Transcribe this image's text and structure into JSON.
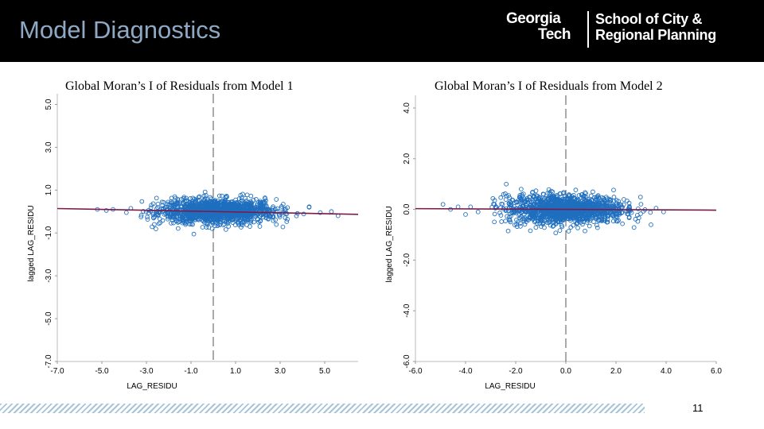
{
  "slide": {
    "title": "Model Diagnostics",
    "logo": {
      "line1": "Georgia",
      "line2": "Tech",
      "school1": "School of City &",
      "school2": "Regional Planning"
    },
    "page_number": "11"
  },
  "colors": {
    "header_bg": "#000000",
    "title_color": "#8fa9c4",
    "point_color": "#1f6fbf",
    "regression_line": "#7a1a4a",
    "stripe": "#a8c4d8"
  },
  "chart_data": [
    {
      "type": "scatter",
      "title": "Global Moran’s I of Residuals from Model 1",
      "xlabel": "LAG_RESIDU",
      "ylabel": "lagged LAG_RESIDU",
      "x_ticks": [
        "-7.0",
        "-5.0",
        "-3.0",
        "-1.0",
        "1.0",
        "3.0",
        "5.0"
      ],
      "y_ticks": [
        "-7.0",
        "-5.0",
        "-3.0",
        "-1.0",
        "1.0",
        "3.0",
        "5.0"
      ],
      "xlim": [
        -7,
        6.5
      ],
      "ylim": [
        -7,
        5.5
      ],
      "x_mean": 0,
      "regression": {
        "intercept": 0.0,
        "slope": -0.02
      },
      "grid": false,
      "cluster": {
        "x_range": [
          -3.3,
          4.5
        ],
        "x_center": 0.2,
        "x_spread": 1.3,
        "y_spread": 0.28
      },
      "outliers": [
        [
          -5.2,
          0.1
        ],
        [
          -4.8,
          0.05
        ],
        [
          -4.5,
          0.1
        ],
        [
          -3.9,
          -0.05
        ],
        [
          -3.7,
          0.15
        ],
        [
          4.8,
          -0.05
        ],
        [
          5.3,
          0.0
        ],
        [
          5.6,
          -0.2
        ],
        [
          4.3,
          0.2
        ]
      ]
    },
    {
      "type": "scatter",
      "title": "Global Moran’s I of Residuals from Model 2",
      "xlabel": "LAG_RESIDU",
      "ylabel": "lagged LAG_RESIDU",
      "x_ticks": [
        "-6.0",
        "-4.0",
        "-2.0",
        "0.0",
        "2.0",
        "4.0",
        "6.0"
      ],
      "y_ticks": [
        "-6.0",
        "-4.0",
        "-2.0",
        "0.0",
        "2.0",
        "4.0"
      ],
      "xlim": [
        -6,
        6
      ],
      "ylim": [
        -6,
        4.5
      ],
      "x_mean": 0,
      "regression": {
        "intercept": 0.0,
        "slope": -0.005
      },
      "grid": false,
      "cluster": {
        "x_range": [
          -3,
          3.5
        ],
        "x_center": 0.0,
        "x_spread": 1.2,
        "y_spread": 0.28
      },
      "outliers": [
        [
          -4.9,
          0.2
        ],
        [
          -4.6,
          0.0
        ],
        [
          -4.3,
          0.1
        ],
        [
          -4.0,
          -0.2
        ],
        [
          -3.8,
          0.1
        ],
        [
          -3.5,
          -0.1
        ],
        [
          3.6,
          0.05
        ],
        [
          3.9,
          -0.1
        ],
        [
          -2.3,
          -0.85
        ]
      ]
    }
  ]
}
